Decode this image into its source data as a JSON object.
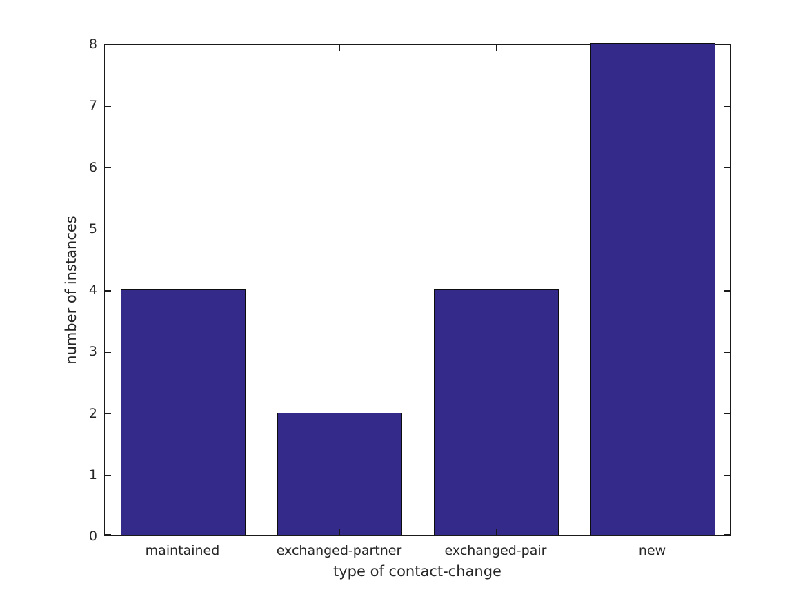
{
  "chart_data": {
    "type": "bar",
    "categories": [
      "maintained",
      "exchanged-partner",
      "exchanged-pair",
      "new"
    ],
    "values": [
      4,
      2,
      4,
      8
    ],
    "title": "",
    "xlabel": "type of contact-change",
    "ylabel": "number of instances",
    "ylim": [
      0,
      8
    ],
    "yticks": [
      0,
      1,
      2,
      3,
      4,
      5,
      6,
      7,
      8
    ],
    "bar_width_fraction": 0.8,
    "grid": false,
    "legend": false,
    "tick_direction": "in",
    "colors": {
      "bar_fill": "#342a89",
      "bar_edge": "#0d0d0d",
      "axis": "#1a1a1a",
      "text": "#262626",
      "background": "#ffffff"
    }
  }
}
